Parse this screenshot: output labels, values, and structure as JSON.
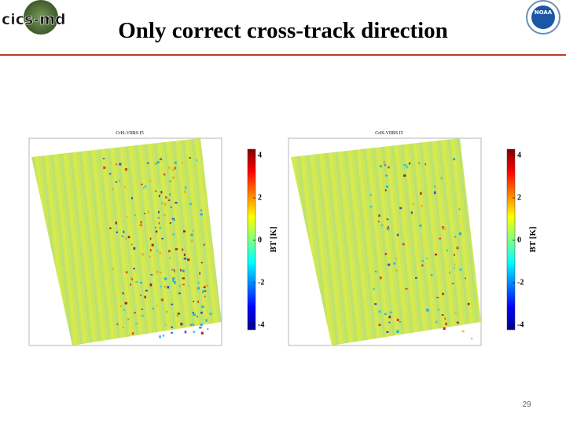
{
  "header": {
    "logo_text": "cics-md",
    "noaa_text": "NOAA",
    "title": "Only correct cross-track direction"
  },
  "panels": [
    {
      "title": "CrIS-VIIRS I5",
      "colorbar": {
        "ticks": [
          4,
          2,
          0,
          -2,
          -4
        ],
        "label": "BT [K]"
      }
    },
    {
      "title": "CrIS-VIIRS I5",
      "colorbar": {
        "ticks": [
          4,
          2,
          0,
          -2,
          -4
        ],
        "label": "BT [K]"
      }
    }
  ],
  "footer": {
    "page_number": "29"
  }
}
